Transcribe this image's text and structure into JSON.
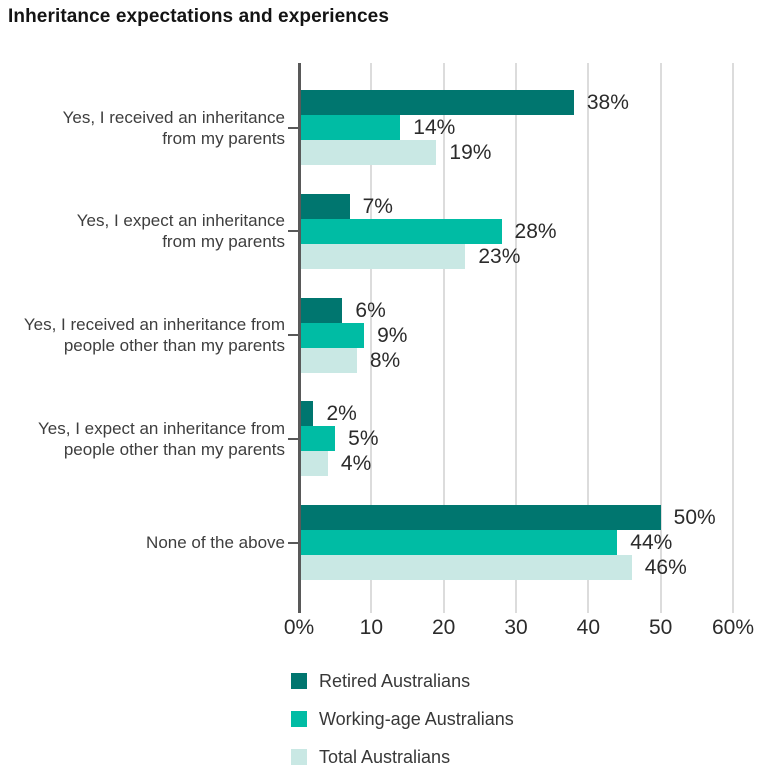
{
  "title": "Inheritance expectations and experiences",
  "chart_data": {
    "type": "bar",
    "orientation": "horizontal",
    "title": "Inheritance expectations and experiences",
    "xlabel": "",
    "ylabel": "",
    "xlim": [
      0,
      60
    ],
    "grid": true,
    "legend_position": "bottom",
    "axis_color": "#595959",
    "gridline_color": "#dcdcdc",
    "value_label_color": "#2b2b2b",
    "category_label_color": "#3e3e3e",
    "categories": [
      {
        "label": "Yes, I received an inheritance from my parents",
        "lines": [
          "Yes, I received an inheritance",
          "from my parents"
        ]
      },
      {
        "label": "Yes, I expect an inheritance from my parents",
        "lines": [
          "Yes, I expect an inheritance",
          "from my parents"
        ]
      },
      {
        "label": "Yes, I received an inheritance from people other than my parents",
        "lines": [
          "Yes, I received an inheritance from",
          "people other than my parents"
        ]
      },
      {
        "label": "Yes, I expect an inheritance from people other than my parents",
        "lines": [
          "Yes, I expect an inheritance from",
          "people other than my parents"
        ]
      },
      {
        "label": "None of the above",
        "lines": [
          "None of the above"
        ]
      }
    ],
    "series": [
      {
        "name": "Retired Australians",
        "color": "#00766f",
        "values": [
          38,
          7,
          6,
          2,
          50
        ],
        "value_labels": [
          "38%",
          "7%",
          "6%",
          "2%",
          "50%"
        ]
      },
      {
        "name": "Working-age Australians",
        "color": "#00bca4",
        "values": [
          14,
          28,
          9,
          5,
          44
        ],
        "value_labels": [
          "14%",
          "28%",
          "9%",
          "5%",
          "44%"
        ]
      },
      {
        "name": "Total Australians",
        "color": "#c9e8e4",
        "values": [
          19,
          23,
          8,
          4,
          46
        ],
        "value_labels": [
          "19%",
          "23%",
          "8%",
          "4%",
          "46%"
        ]
      }
    ],
    "x_ticks": [
      {
        "value": 0,
        "label": "0%"
      },
      {
        "value": 10,
        "label": "10"
      },
      {
        "value": 20,
        "label": "20"
      },
      {
        "value": 30,
        "label": "30"
      },
      {
        "value": 40,
        "label": "40"
      },
      {
        "value": 50,
        "label": "50"
      },
      {
        "value": 60,
        "label": "60%"
      }
    ]
  }
}
